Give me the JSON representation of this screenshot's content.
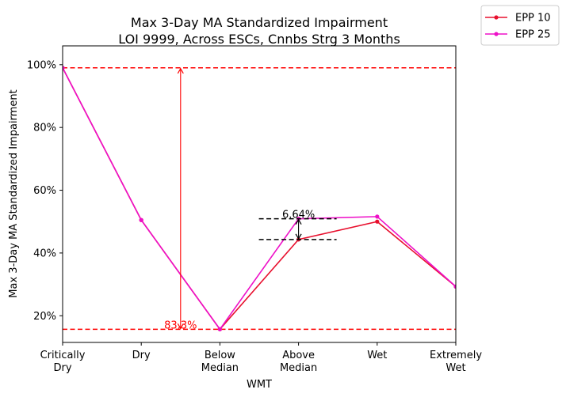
{
  "chart_data": {
    "type": "line",
    "title_line1": "Max 3-Day MA Standardized Impairment",
    "title_line2": "LOI 9999, Across ESCs, Cnnbs Strg 3 Months",
    "xlabel": "WMT",
    "ylabel": "Max 3-Day MA Standardized Impairment",
    "categories": [
      [
        "Critically",
        "Dry"
      ],
      [
        "Dry"
      ],
      [
        "Below",
        "Median"
      ],
      [
        "Above",
        "Median"
      ],
      [
        "Wet"
      ],
      [
        "Extremely",
        "Wet"
      ]
    ],
    "ylim": [
      11.5,
      106
    ],
    "yticks": [
      20,
      40,
      60,
      80,
      100
    ],
    "ytick_labels": [
      "20%",
      "40%",
      "60%",
      "80%",
      "100%"
    ],
    "grid": false,
    "legend_position": "outside-top-right",
    "series": [
      {
        "name": "EPP 10",
        "color": "#e8102e",
        "values": [
          99,
          50.5,
          15.7,
          44.3,
          50,
          29.3
        ]
      },
      {
        "name": "EPP 25",
        "color": "#ee10c8",
        "values": [
          99,
          50.5,
          15.7,
          50.9,
          51.6,
          29.3
        ]
      }
    ],
    "reference_lines": [
      {
        "y": 99,
        "color": "#ff0000",
        "style": "dashed"
      },
      {
        "y": 15.7,
        "color": "#ff0000",
        "style": "dashed"
      }
    ],
    "annotations": [
      {
        "label": "83.3%",
        "x_index": 1.5,
        "y_from": 15.7,
        "y_to": 99,
        "color": "#ff0000"
      },
      {
        "label": "6.64%",
        "x_index": 3,
        "y_from": 44.3,
        "y_to": 50.9,
        "color": "#000000"
      }
    ]
  }
}
